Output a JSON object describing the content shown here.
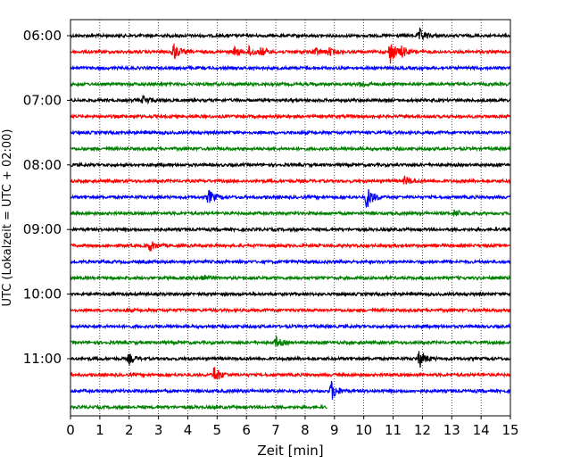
{
  "chart_data": {
    "type": "line",
    "title": "",
    "xlabel": "Zeit  [min]",
    "ylabel": "UTC (Lokalzeit = UTC + 02:00)",
    "xlim": [
      0,
      15
    ],
    "x_ticks": [
      "0",
      "1",
      "2",
      "3",
      "4",
      "5",
      "6",
      "7",
      "8",
      "9",
      "10",
      "11",
      "12",
      "13",
      "14",
      "15"
    ],
    "y_tick_labels": [
      "06:00",
      "07:00",
      "08:00",
      "09:00",
      "10:00",
      "11:00"
    ],
    "y_tick_rows": [
      0,
      4,
      8,
      12,
      16,
      20
    ],
    "grid": "vertical dotted at each minute",
    "trace_colors": [
      "#000000",
      "#ff0000",
      "#0000ff",
      "#008000"
    ],
    "rows": [
      {
        "time": "06:00",
        "color": "#000000",
        "events": [
          {
            "t": 11.9,
            "amp": 7
          }
        ]
      },
      {
        "time": "06:15",
        "color": "#ff0000",
        "events": [
          {
            "t": 3.5,
            "amp": 10
          },
          {
            "t": 5.6,
            "amp": 5
          },
          {
            "t": 6.1,
            "amp": 6
          },
          {
            "t": 6.5,
            "amp": 4
          },
          {
            "t": 8.3,
            "amp": 5
          },
          {
            "t": 8.8,
            "amp": 4
          },
          {
            "t": 10.9,
            "amp": 13
          },
          {
            "t": 11.3,
            "amp": 5
          }
        ]
      },
      {
        "time": "06:30",
        "color": "#0000ff",
        "events": []
      },
      {
        "time": "06:45",
        "color": "#008000",
        "events": [
          {
            "t": 9.9,
            "amp": 3
          }
        ]
      },
      {
        "time": "07:00",
        "color": "#000000",
        "events": [
          {
            "t": 2.5,
            "amp": 5
          }
        ]
      },
      {
        "time": "07:15",
        "color": "#ff0000",
        "events": []
      },
      {
        "time": "07:30",
        "color": "#0000ff",
        "events": []
      },
      {
        "time": "07:45",
        "color": "#008000",
        "events": []
      },
      {
        "time": "08:00",
        "color": "#000000",
        "events": []
      },
      {
        "time": "08:15",
        "color": "#ff0000",
        "events": [
          {
            "t": 11.4,
            "amp": 5
          }
        ]
      },
      {
        "time": "08:30",
        "color": "#0000ff",
        "events": [
          {
            "t": 4.7,
            "amp": 8
          },
          {
            "t": 10.1,
            "amp": 13
          }
        ]
      },
      {
        "time": "08:45",
        "color": "#008000",
        "events": [
          {
            "t": 13.1,
            "amp": 4
          }
        ]
      },
      {
        "time": "09:00",
        "color": "#000000",
        "events": []
      },
      {
        "time": "09:15",
        "color": "#ff0000",
        "events": [
          {
            "t": 2.7,
            "amp": 6
          }
        ]
      },
      {
        "time": "09:30",
        "color": "#0000ff",
        "events": []
      },
      {
        "time": "09:45",
        "color": "#008000",
        "events": [
          {
            "t": 4.5,
            "amp": 4
          }
        ]
      },
      {
        "time": "10:00",
        "color": "#000000",
        "events": []
      },
      {
        "time": "10:15",
        "color": "#ff0000",
        "events": []
      },
      {
        "time": "10:30",
        "color": "#0000ff",
        "events": []
      },
      {
        "time": "10:45",
        "color": "#008000",
        "events": [
          {
            "t": 7.0,
            "amp": 6
          }
        ]
      },
      {
        "time": "11:00",
        "color": "#000000",
        "events": [
          {
            "t": 2.0,
            "amp": 5
          },
          {
            "t": 11.9,
            "amp": 10
          }
        ]
      },
      {
        "time": "11:15",
        "color": "#ff0000",
        "events": [
          {
            "t": 4.9,
            "amp": 10
          }
        ]
      },
      {
        "time": "11:30",
        "color": "#0000ff",
        "events": [
          {
            "t": 8.9,
            "amp": 11
          }
        ]
      },
      {
        "time": "11:45",
        "color": "#008000",
        "end_minute": 8.75,
        "events": []
      }
    ]
  }
}
